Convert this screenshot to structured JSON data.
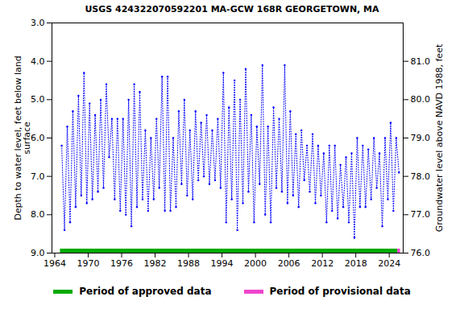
{
  "chart_data": {
    "type": "line",
    "title": "USGS 424322070592201 MA-GCW 168R GEORGETOWN, MA",
    "xlabel": null,
    "ylabel": "Depth to water level, feet below land\nsurface",
    "y2label": "Groundwater level above NAVD 1988, feet",
    "grid": false,
    "xlim": [
      1963.5,
      2026.5
    ],
    "xticks": [
      1964,
      1970,
      1976,
      1982,
      1988,
      1994,
      2000,
      2006,
      2012,
      2018,
      2024
    ],
    "ylim": [
      3.0,
      9.0
    ],
    "yticks": [
      {
        "value": 3,
        "label": "3.0"
      },
      {
        "value": 4,
        "label": "4.0"
      },
      {
        "value": 5,
        "label": "5.0"
      },
      {
        "value": 6,
        "label": "6.0"
      },
      {
        "value": 7,
        "label": "7.0"
      },
      {
        "value": 8,
        "label": "8.0"
      },
      {
        "value": 9,
        "label": "9.0"
      }
    ],
    "y2lim": [
      82.0,
      76.0
    ],
    "y2ticks": [
      {
        "value": 76,
        "label": "76.0"
      },
      {
        "value": 77,
        "label": "77.0"
      },
      {
        "value": 78,
        "label": "78.0"
      },
      {
        "value": 79,
        "label": "79.0"
      },
      {
        "value": 80,
        "label": "80.0"
      },
      {
        "value": 81,
        "label": "81.0"
      }
    ],
    "x": [
      1965.25,
      1965.75,
      1966.25,
      1966.75,
      1967.25,
      1967.75,
      1968.25,
      1968.75,
      1969.25,
      1969.75,
      1970.25,
      1970.75,
      1971.25,
      1971.75,
      1972.25,
      1972.75,
      1973.25,
      1973.75,
      1974.25,
      1974.75,
      1975.25,
      1975.75,
      1976.25,
      1976.75,
      1977.25,
      1977.75,
      1978.25,
      1978.75,
      1979.25,
      1979.75,
      1980.25,
      1980.75,
      1981.25,
      1981.75,
      1982.25,
      1982.75,
      1983.25,
      1983.75,
      1984.25,
      1984.75,
      1985.25,
      1985.75,
      1986.25,
      1986.75,
      1987.25,
      1987.75,
      1988.25,
      1988.75,
      1989.25,
      1989.75,
      1990.25,
      1990.75,
      1991.25,
      1991.75,
      1992.25,
      1992.75,
      1993.25,
      1993.75,
      1994.25,
      1994.75,
      1995.25,
      1995.75,
      1996.25,
      1996.75,
      1997.25,
      1997.75,
      1998.25,
      1998.75,
      1999.25,
      1999.75,
      2000.25,
      2000.75,
      2001.25,
      2001.75,
      2002.25,
      2002.75,
      2003.25,
      2003.75,
      2004.25,
      2004.75,
      2005.25,
      2005.75,
      2006.25,
      2006.75,
      2007.25,
      2007.75,
      2008.25,
      2008.75,
      2009.25,
      2009.75,
      2010.25,
      2010.75,
      2011.25,
      2011.75,
      2012.25,
      2012.75,
      2013.25,
      2013.75,
      2014.25,
      2014.75,
      2015.25,
      2015.75,
      2016.25,
      2016.75,
      2017.25,
      2017.75,
      2018.25,
      2018.75,
      2019.25,
      2019.75,
      2020.25,
      2020.75,
      2021.25,
      2021.75,
      2022.25,
      2022.75,
      2023.25,
      2023.75,
      2024.25,
      2024.75,
      2025.25,
      2025.75
    ],
    "series": [
      {
        "name": "Depth to water level",
        "color": "#0000ff",
        "marker": "dot",
        "line_style": "dotted",
        "values": [
          6.2,
          8.4,
          5.7,
          8.2,
          5.3,
          7.8,
          4.9,
          7.5,
          4.3,
          7.7,
          5.1,
          7.6,
          5.4,
          7.4,
          5.0,
          7.3,
          4.6,
          6.5,
          5.5,
          7.6,
          5.5,
          7.9,
          5.5,
          8.0,
          5.0,
          8.3,
          4.6,
          7.8,
          4.8,
          7.6,
          5.8,
          7.9,
          6.0,
          7.6,
          5.5,
          7.3,
          4.4,
          7.9,
          4.4,
          7.9,
          6.0,
          7.8,
          5.3,
          7.2,
          5.0,
          7.5,
          5.8,
          7.6,
          5.3,
          7.1,
          5.6,
          7.0,
          5.4,
          7.2,
          5.8,
          7.1,
          5.5,
          7.3,
          4.3,
          8.2,
          5.2,
          7.6,
          4.5,
          8.4,
          5.0,
          7.7,
          4.2,
          7.4,
          5.4,
          8.2,
          5.7,
          7.2,
          4.1,
          8.0,
          5.7,
          8.2,
          5.2,
          7.3,
          5.5,
          7.4,
          4.1,
          7.7,
          5.3,
          7.5,
          5.9,
          7.8,
          5.8,
          7.1,
          6.2,
          7.4,
          5.9,
          7.7,
          6.2,
          7.5,
          6.4,
          8.2,
          6.2,
          7.9,
          6.2,
          8.1,
          6.7,
          7.8,
          6.5,
          8.2,
          6.4,
          8.6,
          6.0,
          7.8,
          6.2,
          7.8,
          6.3,
          7.6,
          6.0,
          7.3,
          6.4,
          8.3,
          6.0,
          7.6,
          5.6,
          7.9,
          6.0,
          6.9
        ]
      }
    ],
    "periods": [
      {
        "name": "Period of approved data",
        "color": "#00aa00",
        "start": 1965.0,
        "end": 2025.5
      },
      {
        "name": "Period of provisional data",
        "color": "#ee44cc",
        "start": 2025.5,
        "end": 2026.0
      }
    ]
  }
}
